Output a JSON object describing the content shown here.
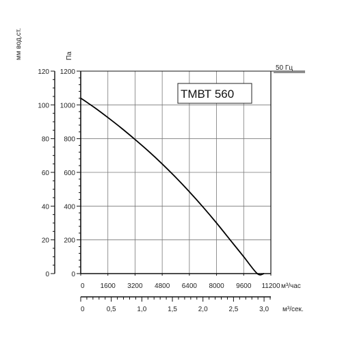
{
  "chart_data": {
    "type": "line",
    "label_box": "ТМВТ 560",
    "frequency_label": "50 Гц",
    "y_left_unit": "мм вод.ст.",
    "y_right_unit": "Па",
    "x_unit_hour": "м³/час",
    "x_unit_sec": "м³/сек.",
    "y_mm_ticks": [
      "0",
      "20",
      "40",
      "60",
      "80",
      "100",
      "120"
    ],
    "y_pa_ticks": [
      "0",
      "200",
      "400",
      "600",
      "800",
      "1000",
      "1200"
    ],
    "x_hour_ticks": [
      "0",
      "1600",
      "3200",
      "4800",
      "6400",
      "8000",
      "9600",
      "11200"
    ],
    "x_sec_ticks": [
      "0",
      "0,5",
      "1,0",
      "1,5",
      "2,0",
      "2,5",
      "3,0"
    ],
    "xlim": [
      0,
      11200
    ],
    "ylim": [
      0,
      1200
    ],
    "series": [
      {
        "x": [
          0,
          800,
          1600,
          2400,
          3200,
          4000,
          4800,
          5600,
          6400,
          7200,
          8000,
          8800,
          9600,
          10400,
          10800
        ],
        "y": [
          1040,
          985,
          925,
          862,
          795,
          725,
          650,
          570,
          485,
          395,
          300,
          200,
          100,
          0,
          0
        ]
      }
    ],
    "grid": true
  }
}
